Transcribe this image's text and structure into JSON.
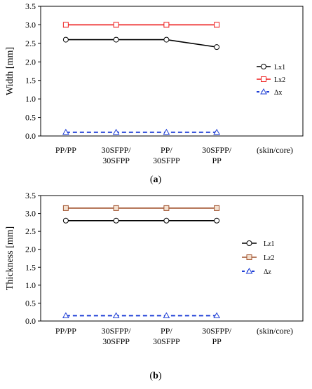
{
  "chart_data": [
    {
      "type": "line",
      "ylabel": "Width [mm]",
      "ylim": [
        0.0,
        3.5
      ],
      "yticks": [
        "0.0",
        "0.5",
        "1.0",
        "1.5",
        "2.0",
        "2.5",
        "3.0",
        "3.5"
      ],
      "categories": [
        [
          "PP/PP"
        ],
        [
          "30SFPP/",
          "30SFPP"
        ],
        [
          "PP/",
          "30SFPP"
        ],
        [
          "30SFPP/",
          "PP"
        ]
      ],
      "axis_note": "(skin/core)",
      "caption_prefix": "(",
      "caption_label": "a",
      "caption_suffix": ")",
      "grid": false,
      "legend_position": "right",
      "series": [
        {
          "name": "Lx1",
          "values": [
            2.6,
            2.6,
            2.6,
            2.4
          ],
          "color": "#000000",
          "marker": "circle",
          "dash": false
        },
        {
          "name": "Lx2",
          "values": [
            3.0,
            3.0,
            3.0,
            3.0
          ],
          "color": "#ee1c1c",
          "marker": "square",
          "dash": false
        },
        {
          "name": "Δx",
          "values": [
            0.1,
            0.1,
            0.1,
            0.1
          ],
          "color": "#1f3fd6",
          "marker": "triangle",
          "dash": true
        }
      ]
    },
    {
      "type": "line",
      "ylabel": "Thickness [mm]",
      "ylim": [
        0.0,
        3.5
      ],
      "yticks": [
        "0.0",
        "0.5",
        "1.0",
        "1.5",
        "2.0",
        "2.5",
        "3.0",
        "3.5"
      ],
      "categories": [
        [
          "PP/PP"
        ],
        [
          "30SFPP/",
          "30SFPP"
        ],
        [
          "PP/",
          "30SFPP"
        ],
        [
          "30SFPP/",
          "PP"
        ]
      ],
      "axis_note": "(skin/core)",
      "caption_prefix": "(",
      "caption_label": "b",
      "caption_suffix": ")",
      "grid": false,
      "legend_position": "right",
      "series": [
        {
          "name": "Lz1",
          "values": [
            2.8,
            2.8,
            2.8,
            2.8
          ],
          "color": "#000000",
          "marker": "circle",
          "dash": false
        },
        {
          "name": "Lz2",
          "values": [
            3.15,
            3.15,
            3.15,
            3.15
          ],
          "color": "#a0522d",
          "marker": "square",
          "dash": false
        },
        {
          "name": "Δz",
          "values": [
            0.15,
            0.15,
            0.15,
            0.15
          ],
          "color": "#1f3fd6",
          "marker": "triangle",
          "dash": true
        }
      ]
    }
  ]
}
